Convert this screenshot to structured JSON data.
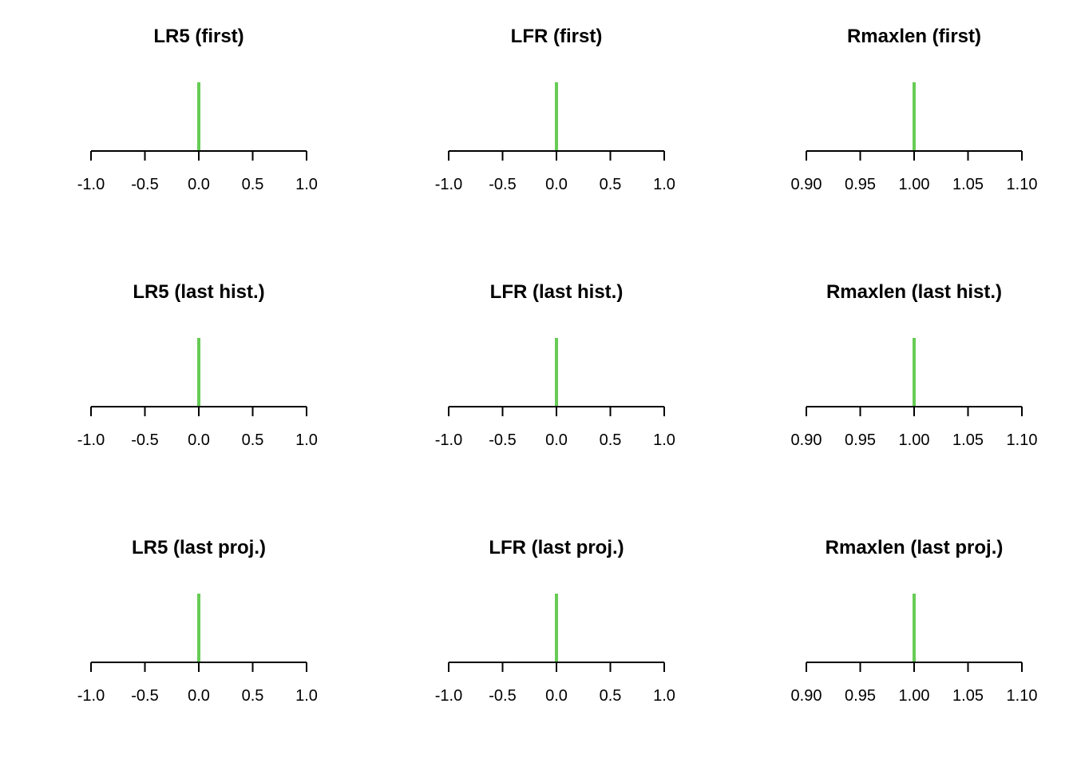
{
  "colors": {
    "value_line": "#66cc55",
    "axis": "#000000"
  },
  "chart_data": [
    {
      "type": "histogram",
      "title": "LR5 (first)",
      "xlim": [
        -1.0,
        1.0
      ],
      "ticks": [
        -1.0,
        -0.5,
        0.0,
        0.5,
        1.0
      ],
      "tick_labels": [
        "-1.0",
        "-0.5",
        "0.0",
        "0.5",
        "1.0"
      ],
      "values": [
        0.0
      ]
    },
    {
      "type": "histogram",
      "title": "LFR (first)",
      "xlim": [
        -1.0,
        1.0
      ],
      "ticks": [
        -1.0,
        -0.5,
        0.0,
        0.5,
        1.0
      ],
      "tick_labels": [
        "-1.0",
        "-0.5",
        "0.0",
        "0.5",
        "1.0"
      ],
      "values": [
        0.0
      ]
    },
    {
      "type": "histogram",
      "title": "Rmaxlen (first)",
      "xlim": [
        0.9,
        1.1
      ],
      "ticks": [
        0.9,
        0.95,
        1.0,
        1.05,
        1.1
      ],
      "tick_labels": [
        "0.90",
        "0.95",
        "1.00",
        "1.05",
        "1.10"
      ],
      "values": [
        1.0
      ]
    },
    {
      "type": "histogram",
      "title": "LR5 (last hist.)",
      "xlim": [
        -1.0,
        1.0
      ],
      "ticks": [
        -1.0,
        -0.5,
        0.0,
        0.5,
        1.0
      ],
      "tick_labels": [
        "-1.0",
        "-0.5",
        "0.0",
        "0.5",
        "1.0"
      ],
      "values": [
        0.0
      ]
    },
    {
      "type": "histogram",
      "title": "LFR (last hist.)",
      "xlim": [
        -1.0,
        1.0
      ],
      "ticks": [
        -1.0,
        -0.5,
        0.0,
        0.5,
        1.0
      ],
      "tick_labels": [
        "-1.0",
        "-0.5",
        "0.0",
        "0.5",
        "1.0"
      ],
      "values": [
        0.0
      ]
    },
    {
      "type": "histogram",
      "title": "Rmaxlen (last hist.)",
      "xlim": [
        0.9,
        1.1
      ],
      "ticks": [
        0.9,
        0.95,
        1.0,
        1.05,
        1.1
      ],
      "tick_labels": [
        "0.90",
        "0.95",
        "1.00",
        "1.05",
        "1.10"
      ],
      "values": [
        1.0
      ]
    },
    {
      "type": "histogram",
      "title": "LR5 (last proj.)",
      "xlim": [
        -1.0,
        1.0
      ],
      "ticks": [
        -1.0,
        -0.5,
        0.0,
        0.5,
        1.0
      ],
      "tick_labels": [
        "-1.0",
        "-0.5",
        "0.0",
        "0.5",
        "1.0"
      ],
      "values": [
        0.0
      ]
    },
    {
      "type": "histogram",
      "title": "LFR (last proj.)",
      "xlim": [
        -1.0,
        1.0
      ],
      "ticks": [
        -1.0,
        -0.5,
        0.0,
        0.5,
        1.0
      ],
      "tick_labels": [
        "-1.0",
        "-0.5",
        "0.0",
        "0.5",
        "1.0"
      ],
      "values": [
        0.0
      ]
    },
    {
      "type": "histogram",
      "title": "Rmaxlen (last proj.)",
      "xlim": [
        0.9,
        1.1
      ],
      "ticks": [
        0.9,
        0.95,
        1.0,
        1.05,
        1.1
      ],
      "tick_labels": [
        "0.90",
        "0.95",
        "1.00",
        "1.05",
        "1.10"
      ],
      "values": [
        1.0
      ]
    }
  ]
}
